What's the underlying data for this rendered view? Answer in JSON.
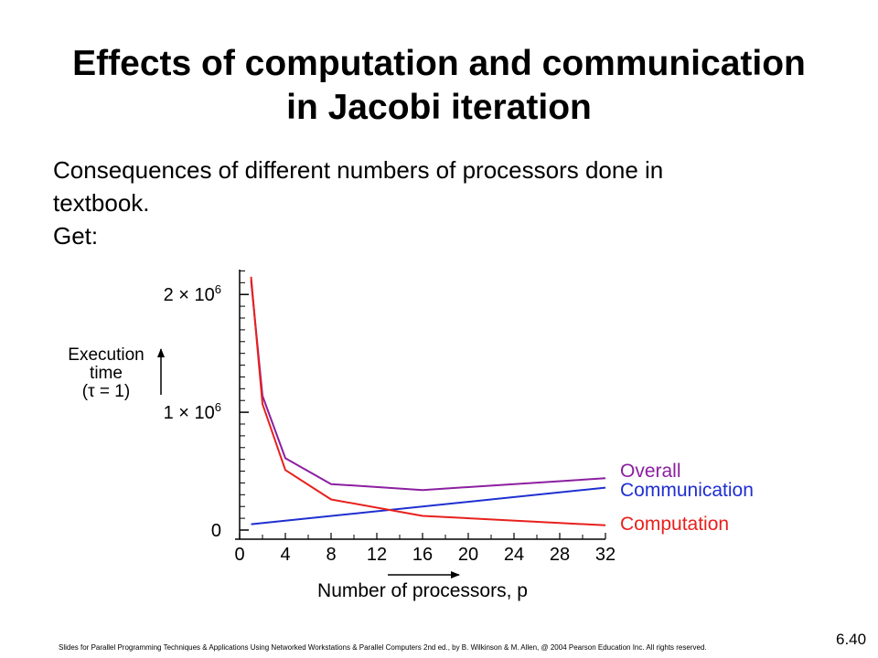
{
  "slide": {
    "title_line1": "Effects of computation and communication",
    "title_line2": "in Jacobi iteration",
    "body_line1": "Consequences of different numbers of processors done in",
    "body_line2": "textbook.",
    "body_line3": "Get:",
    "footer": "Slides for Parallel Programming Techniques & Applications Using Networked Workstations & Parallel Computers 2nd ed., by B. Wilkinson & M. Allen, @ 2004 Pearson Education Inc. All rights reserved.",
    "slide_number": "6.40"
  },
  "chart_data": {
    "type": "line",
    "ylabel_lines": [
      "Execution",
      "time",
      "(τ = 1)"
    ],
    "xlabel": "Number of processors, p",
    "x_ticks": [
      0,
      4,
      8,
      12,
      16,
      20,
      24,
      28,
      32
    ],
    "x_tick_labels": [
      "0",
      "4",
      "8",
      "12",
      "16",
      "20",
      "24",
      "28",
      "32"
    ],
    "y_ticks": [
      0,
      1000000,
      2000000
    ],
    "y_tick_labels": [
      "0",
      "1 × 10^6",
      "2 × 10^6"
    ],
    "xlim": [
      0,
      32
    ],
    "ylim": [
      0,
      2250000
    ],
    "series": [
      {
        "name": "Overall",
        "color": "#8b1fa0",
        "x": [
          1,
          2,
          4,
          8,
          16,
          32
        ],
        "y": [
          2120000,
          1140000,
          610000,
          390000,
          340000,
          440000
        ]
      },
      {
        "name": "Communication",
        "color": "#1f2fd0",
        "x": [
          1,
          32
        ],
        "y": [
          50000,
          360000
        ]
      },
      {
        "name": "Computation",
        "color": "#e8201c",
        "x": [
          1,
          2,
          4,
          8,
          16,
          32
        ],
        "y": [
          2150000,
          1070000,
          510000,
          260000,
          120000,
          40000
        ]
      }
    ]
  }
}
